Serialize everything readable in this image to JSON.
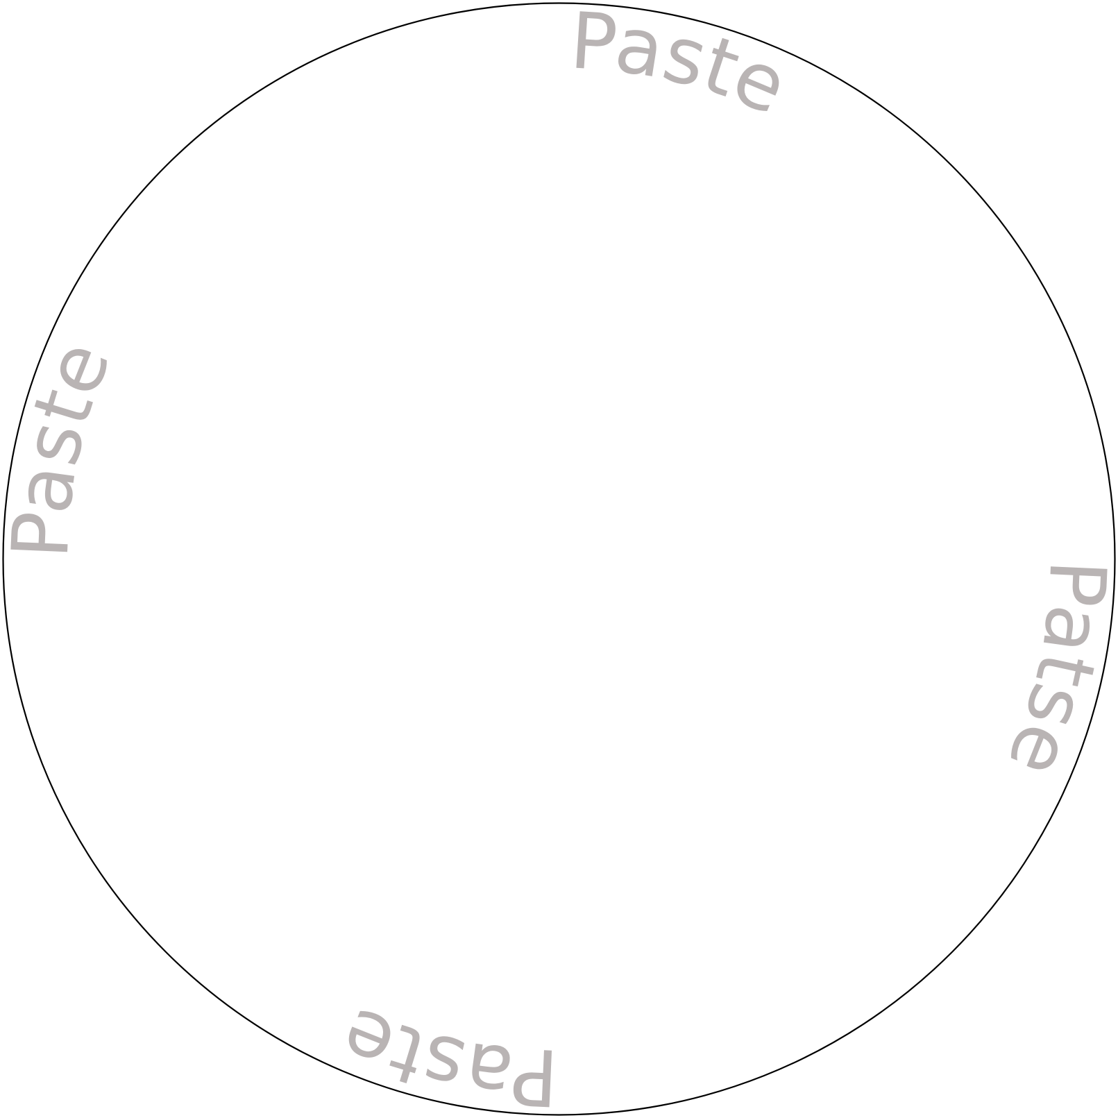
{
  "colors": {
    "outline": "#000000",
    "label": "#b9b4b4",
    "background": "#ffffff"
  },
  "labels": {
    "top": "Paste",
    "right": "Patse",
    "bottom": "Paste",
    "left": "Paste"
  }
}
